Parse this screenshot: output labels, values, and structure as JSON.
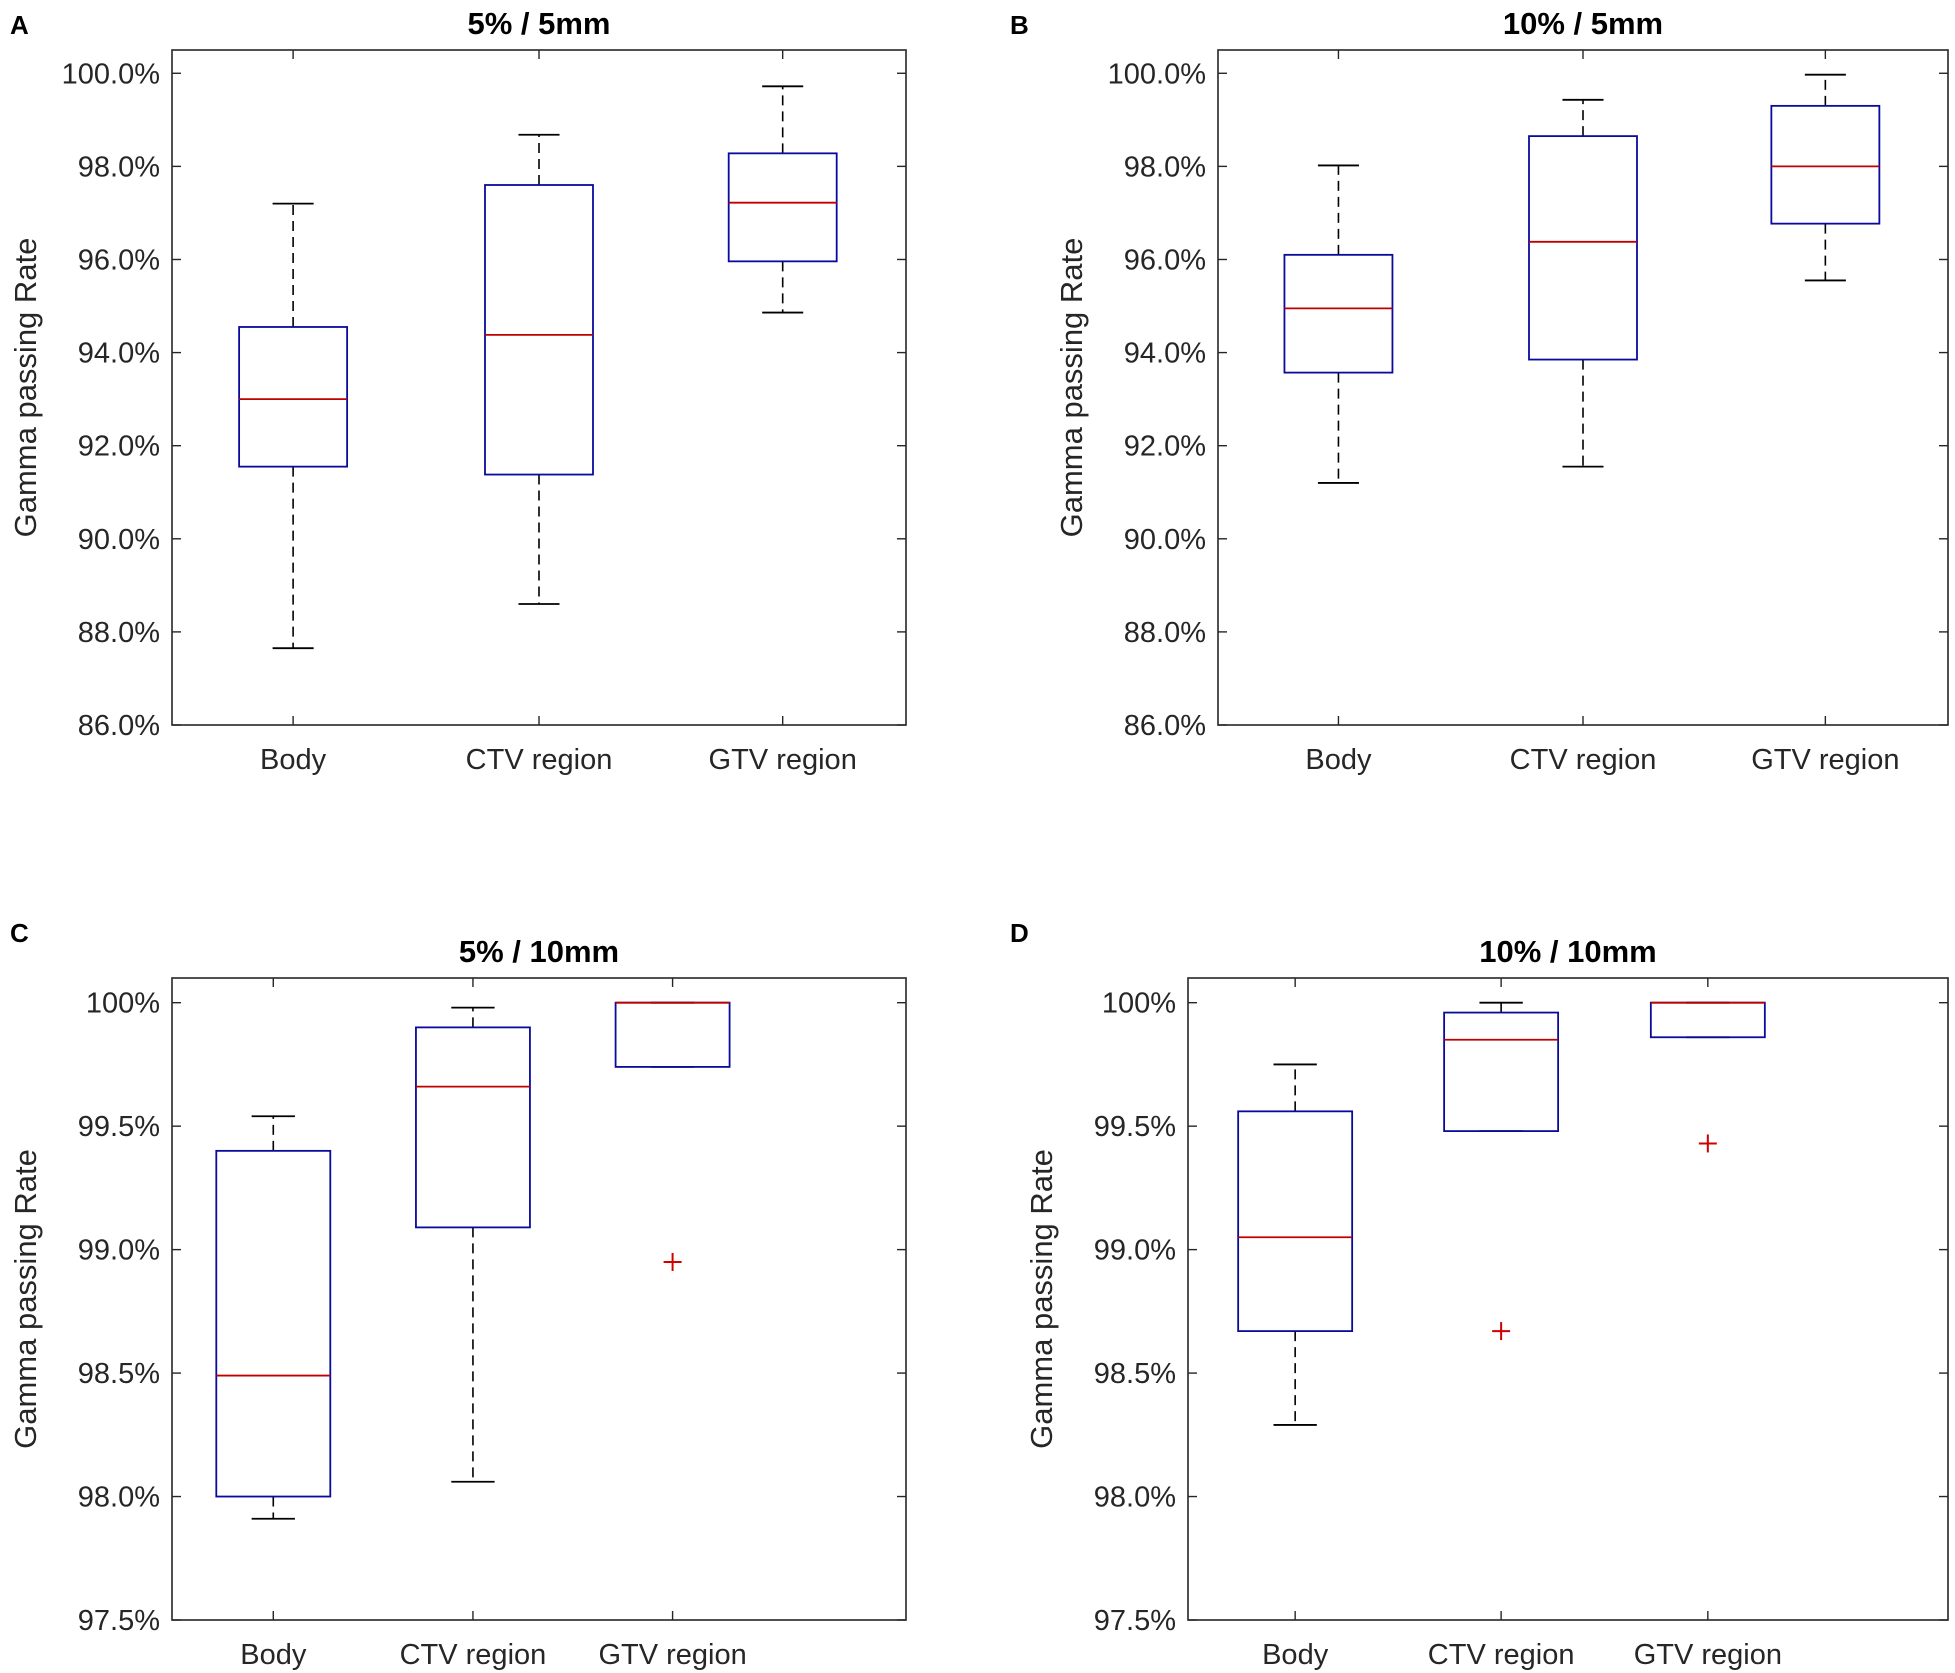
{
  "chart_data": [
    {
      "type": "box",
      "panel": "A",
      "title": "5% / 5mm",
      "xlabel": "",
      "ylabel": "Gamma passing Rate",
      "ylim": [
        86.0,
        100.5
      ],
      "yticks": [
        86,
        88,
        90,
        92,
        94,
        96,
        98,
        100
      ],
      "ytick_labels": [
        "86.0%",
        "88.0%",
        "90.0%",
        "92.0%",
        "94.0%",
        "96.0%",
        "98.0%",
        "100.0%"
      ],
      "categories": [
        "Body",
        "CTV region",
        "GTV region"
      ],
      "boxes": [
        {
          "min": 87.65,
          "q1": 91.55,
          "median": 93.0,
          "q3": 94.55,
          "max": 97.2,
          "outliers": []
        },
        {
          "min": 88.6,
          "q1": 91.38,
          "median": 94.38,
          "q3": 97.6,
          "max": 98.68,
          "outliers": []
        },
        {
          "min": 94.86,
          "q1": 95.96,
          "median": 97.22,
          "q3": 98.28,
          "max": 99.72,
          "outliers": []
        }
      ]
    },
    {
      "type": "box",
      "panel": "B",
      "title": "10% / 5mm",
      "xlabel": "",
      "ylabel": "Gamma passing Rate",
      "ylim": [
        86.0,
        100.5
      ],
      "yticks": [
        86,
        88,
        90,
        92,
        94,
        96,
        98,
        100
      ],
      "ytick_labels": [
        "86.0%",
        "88.0%",
        "90.0%",
        "92.0%",
        "94.0%",
        "96.0%",
        "98.0%",
        "100.0%"
      ],
      "categories": [
        "Body",
        "CTV region",
        "GTV region"
      ],
      "boxes": [
        {
          "min": 91.2,
          "q1": 93.57,
          "median": 94.95,
          "q3": 96.1,
          "max": 98.02,
          "outliers": []
        },
        {
          "min": 91.55,
          "q1": 93.85,
          "median": 96.38,
          "q3": 98.65,
          "max": 99.43,
          "outliers": []
        },
        {
          "min": 95.55,
          "q1": 96.77,
          "median": 98.0,
          "q3": 99.3,
          "max": 99.97,
          "outliers": []
        }
      ]
    },
    {
      "type": "box",
      "panel": "C",
      "title": "5% / 10mm",
      "xlabel": "",
      "ylabel": "Gamma passing Rate",
      "ylim": [
        97.5,
        100.1
      ],
      "yticks": [
        97.5,
        98.0,
        98.5,
        99.0,
        99.5,
        100.0
      ],
      "ytick_labels": [
        "97.5%",
        "98.0%",
        "98.5%",
        "99.0%",
        "99.5%",
        "100%"
      ],
      "categories": [
        "Body",
        "CTV region",
        "GTV region"
      ],
      "boxes": [
        {
          "min": 97.91,
          "q1": 98.0,
          "median": 98.49,
          "q3": 99.4,
          "max": 99.54,
          "outliers": []
        },
        {
          "min": 98.06,
          "q1": 99.09,
          "median": 99.66,
          "q3": 99.9,
          "max": 99.98,
          "outliers": []
        },
        {
          "min": 99.74,
          "q1": 99.74,
          "median": 100.0,
          "q3": 100.0,
          "max": 100.0,
          "outliers": [
            98.95
          ]
        }
      ]
    },
    {
      "type": "box",
      "panel": "D",
      "title": "10% / 10mm",
      "xlabel": "",
      "ylabel": "Gamma passing Rate",
      "ylim": [
        97.5,
        100.1
      ],
      "yticks": [
        97.5,
        98.0,
        98.5,
        99.0,
        99.5,
        100.0
      ],
      "ytick_labels": [
        "97.5%",
        "98.0%",
        "98.5%",
        "99.0%",
        "99.5%",
        "100%"
      ],
      "categories": [
        "Body",
        "CTV region",
        "GTV region"
      ],
      "boxes": [
        {
          "min": 98.29,
          "q1": 98.67,
          "median": 99.05,
          "q3": 99.56,
          "max": 99.75,
          "outliers": []
        },
        {
          "min": 99.48,
          "q1": 99.48,
          "median": 99.85,
          "q3": 99.96,
          "max": 100.0,
          "outliers": [
            98.67
          ]
        },
        {
          "min": 99.86,
          "q1": 99.86,
          "median": 100.0,
          "q3": 100.0,
          "max": 100.0,
          "outliers": [
            99.43
          ]
        }
      ]
    }
  ],
  "colors": {
    "box": "#0a0a9c",
    "median": "#c00000",
    "whisker": "#000000",
    "outlier": "#d00000",
    "axis": "#262626"
  }
}
